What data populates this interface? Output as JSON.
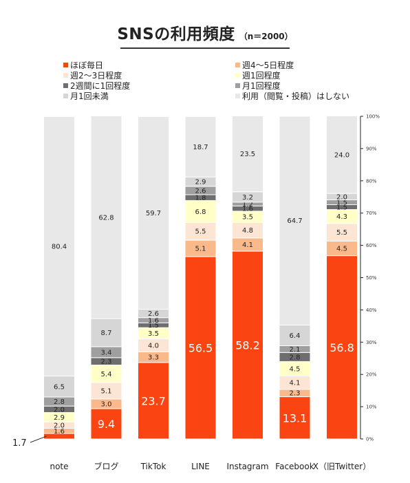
{
  "chart_data": {
    "type": "bar",
    "stacked": true,
    "orientation": "vertical",
    "title": "SNSの利用頻度",
    "subtitle": "（n＝2000）",
    "xlabel": "",
    "ylabel": "",
    "ylim": [
      0,
      100
    ],
    "y_ticks": [
      "0%",
      "10%",
      "20%",
      "30%",
      "40%",
      "50%",
      "60%",
      "70%",
      "80%",
      "90%",
      "100%"
    ],
    "grid": false,
    "legend_position": "top",
    "categories": [
      "note",
      "ブログ",
      "TikTok",
      "LINE",
      "Instagram",
      "Facebook",
      "X（旧Twitter）"
    ],
    "series": [
      {
        "name": "ほぼ毎日",
        "color": "#fa4513",
        "values": [
          1.7,
          9.4,
          23.7,
          56.5,
          58.2,
          13.1,
          56.8
        ],
        "labels": [
          "",
          "9.4",
          "23.7",
          "56.5",
          "58.2",
          "13.1",
          "56.8"
        ]
      },
      {
        "name": "週4～5日程度",
        "color": "#f9b98a",
        "values": [
          1.6,
          3.0,
          3.3,
          5.1,
          4.1,
          2.3,
          4.5
        ],
        "labels": [
          "1.6",
          "3.0",
          "3.3",
          "5.1",
          "4.1",
          "2.3",
          "4.5"
        ]
      },
      {
        "name": "週2～3日程度",
        "color": "#fde5d6",
        "values": [
          2.0,
          5.1,
          4.0,
          5.5,
          4.8,
          4.1,
          5.5
        ],
        "labels": [
          "2.0",
          "5.1",
          "4.0",
          "5.5",
          "4.8",
          "4.1",
          "5.5"
        ]
      },
      {
        "name": "週1回程度",
        "color": "#ffffc7",
        "values": [
          2.9,
          5.4,
          3.5,
          6.8,
          3.5,
          4.5,
          4.3
        ],
        "labels": [
          "2.9",
          "5.4",
          "3.5",
          "6.8",
          "3.5",
          "4.5",
          "4.3"
        ]
      },
      {
        "name": "2週間に1回程度",
        "color": "#6e6e6e",
        "values": [
          2.0,
          2.3,
          1.5,
          1.8,
          1.6,
          2.8,
          1.5
        ],
        "labels": [
          "2.0",
          "2.3",
          "1.5",
          "1.8",
          "1.6",
          "2.8",
          "1.5"
        ]
      },
      {
        "name": "月1回程度",
        "color": "#9f9f9f",
        "values": [
          2.8,
          3.4,
          1.6,
          2.6,
          1.2,
          2.1,
          1.5
        ],
        "labels": [
          "2.8",
          "3.4",
          "1.6",
          "2.6",
          "1.2",
          "2.1",
          "1.5"
        ]
      },
      {
        "name": "月1回未満",
        "color": "#d6d6d6",
        "values": [
          6.5,
          8.7,
          2.6,
          2.9,
          3.2,
          6.4,
          2.0
        ],
        "labels": [
          "6.5",
          "8.7",
          "2.6",
          "2.9",
          "3.2",
          "6.4",
          "2.0"
        ]
      },
      {
        "name": "利用（閲覧・投稿）はしない",
        "color": "#e8e8e8",
        "values": [
          80.4,
          62.8,
          59.7,
          18.7,
          23.5,
          64.7,
          24.0
        ],
        "labels": [
          "80.4",
          "62.8",
          "59.7",
          "18.7",
          "23.5",
          "64.7",
          "24.0"
        ]
      }
    ],
    "annotations": [
      {
        "text": "1.7",
        "category": "note",
        "series": "ほぼ毎日"
      }
    ]
  },
  "legend": [
    {
      "name": "ほぼ毎日",
      "color": "#fa4513"
    },
    {
      "name": "週4～5日程度",
      "color": "#f9b98a"
    },
    {
      "name": "週2～3日程度",
      "color": "#fde5d6"
    },
    {
      "name": "週1回程度",
      "color": "#ffffc7"
    },
    {
      "name": "2週間に1回程度",
      "color": "#6e6e6e"
    },
    {
      "name": "月1回程度",
      "color": "#9f9f9f"
    },
    {
      "name": "月1回未満",
      "color": "#d6d6d6"
    },
    {
      "name": "利用（閲覧・投稿）はしない",
      "color": "#e8e8e8"
    }
  ]
}
